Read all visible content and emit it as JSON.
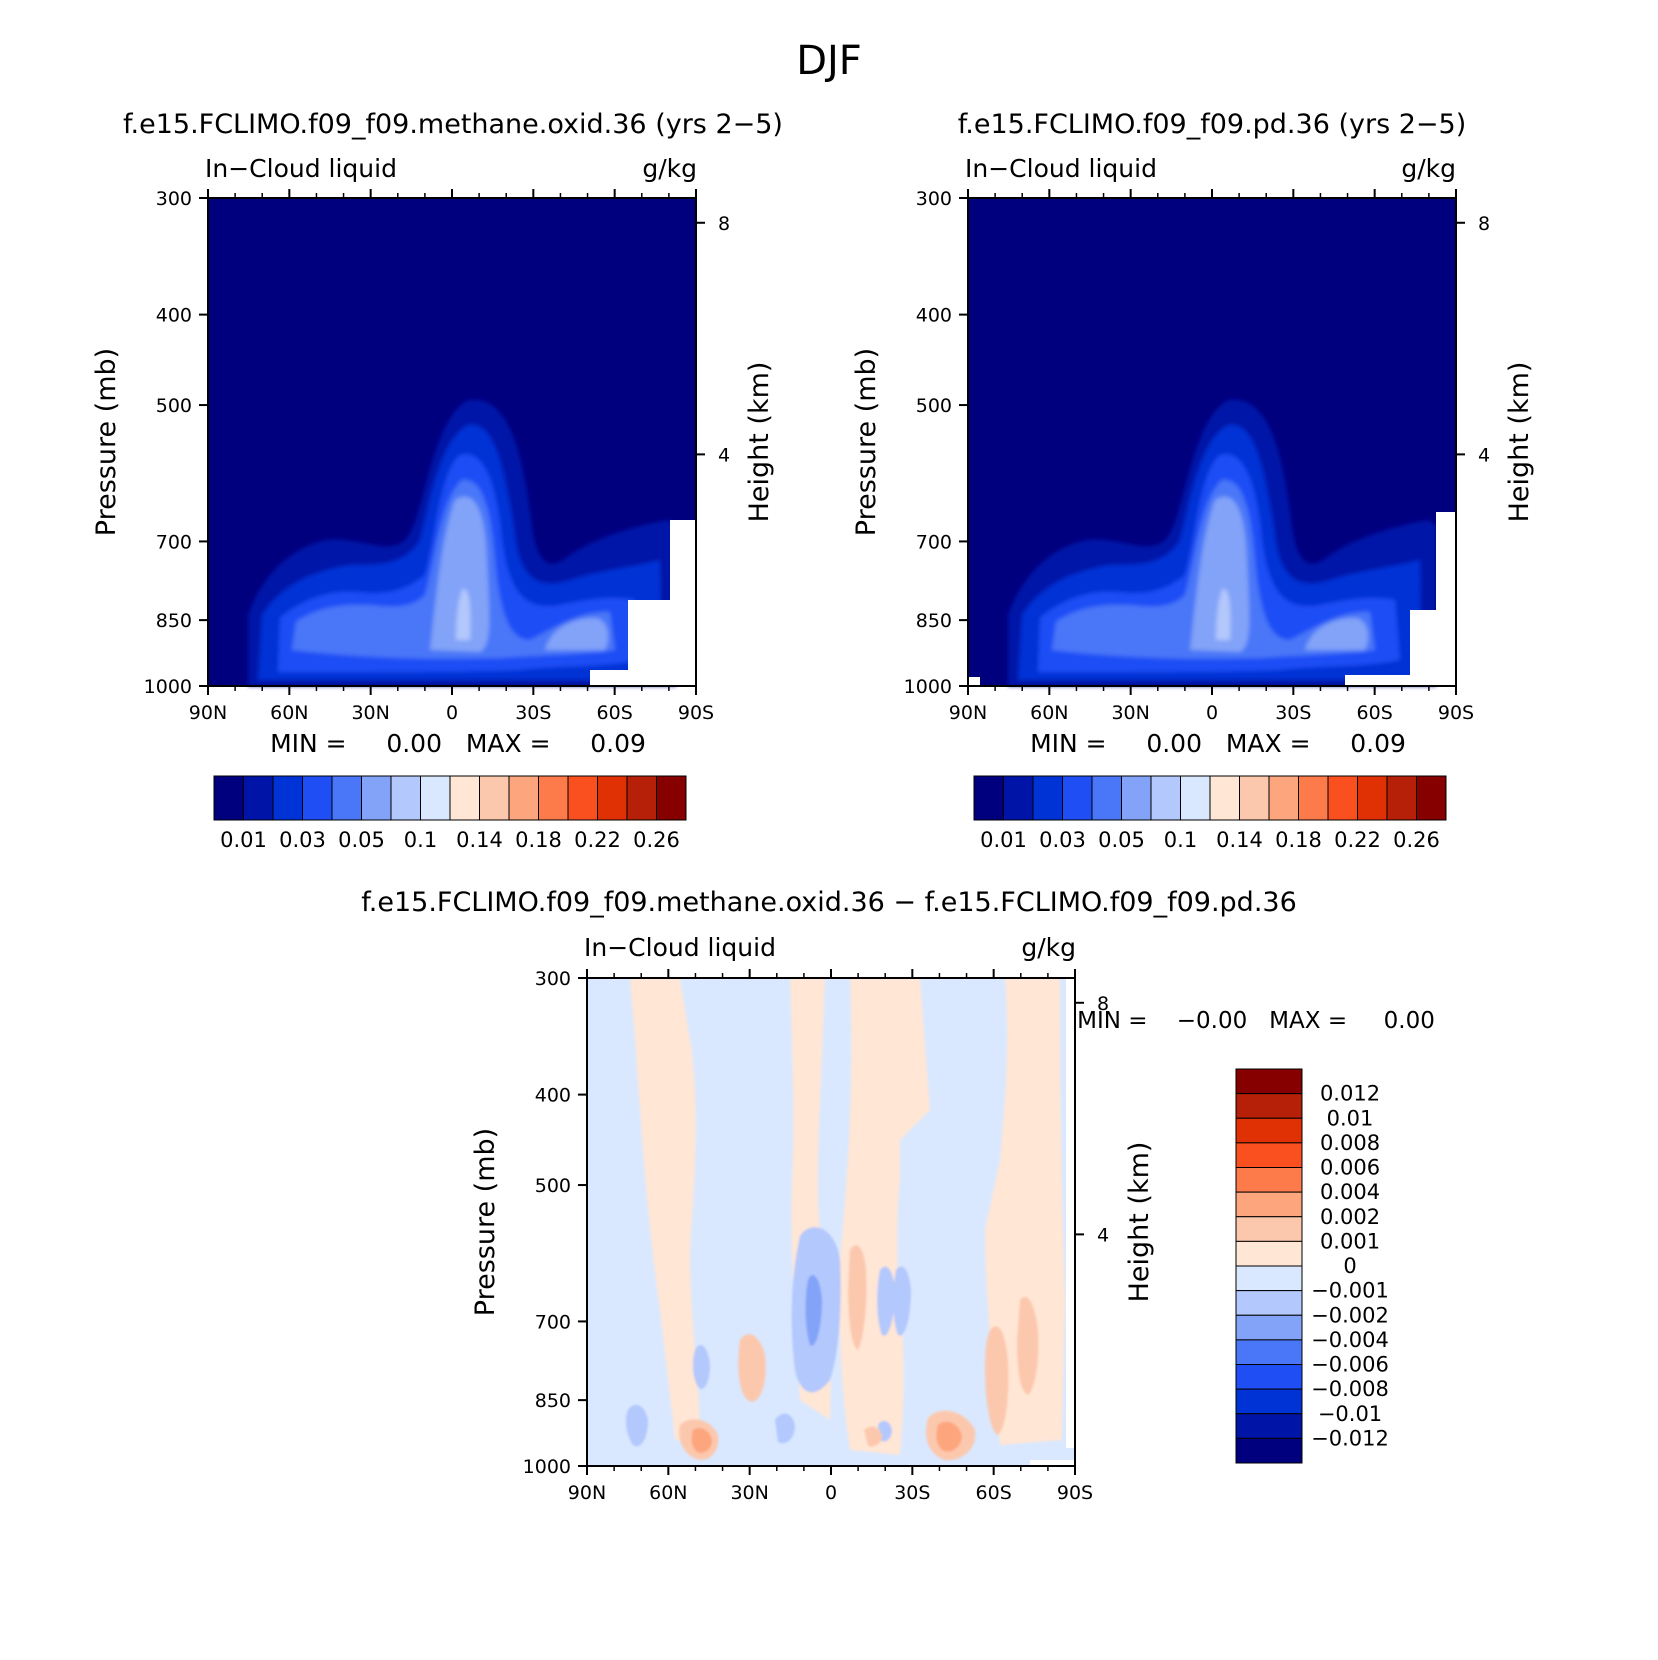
{
  "page_title": "DJF",
  "colors": {
    "sequential": [
      "#00007f",
      "#0014a8",
      "#0033d6",
      "#1f4ef5",
      "#4a77f8",
      "#82a3f8",
      "#b3c8fc",
      "#d9e8ff",
      "#ffe6d5",
      "#fcc8ad",
      "#fda67e",
      "#fd7b4b",
      "#fa4f1f",
      "#e03105",
      "#b61f08",
      "#860000"
    ],
    "diverging": [
      "#00007f",
      "#0014a8",
      "#0033d6",
      "#1f4ef5",
      "#4a77f8",
      "#82a3f8",
      "#b3c8fc",
      "#d9e8ff",
      "#ffe6d5",
      "#fcc8ad",
      "#fda67e",
      "#fd7b4b",
      "#fa4f1f",
      "#e03105",
      "#b61f08",
      "#860000"
    ]
  },
  "chart_data": [
    {
      "type": "heatmap",
      "title": "f.e15.FCLIMO.f09_f09.methane.oxid.36 (yrs 2−5)",
      "left_label": "In−Cloud liquid",
      "right_label": "g/kg",
      "xlabel": "",
      "ylabel": "Pressure (mb)",
      "y2label": "Height (km)",
      "x_ticks": [
        "90N",
        "60N",
        "30N",
        "0",
        "30S",
        "60S",
        "90S"
      ],
      "y_ticks": [
        "300",
        "400",
        "500",
        "700",
        "850",
        "1000"
      ],
      "y_tick_values": [
        300,
        400,
        500,
        700,
        850,
        1000
      ],
      "y2_ticks": [
        "8",
        "4"
      ],
      "y2_tick_values_km": [
        8,
        4
      ],
      "ylim": [
        1000,
        300
      ],
      "xlim": [
        90,
        -90
      ],
      "stats": "MIN =     0.00   MAX =     0.09",
      "colorbar": {
        "labels": [
          "0.01",
          "0.03",
          "0.05",
          "0.1",
          "0.14",
          "0.18",
          "0.22",
          "0.26"
        ],
        "levels": [
          0.01,
          0.02,
          0.03,
          0.04,
          0.05,
          0.07,
          0.1,
          0.12,
          0.14,
          0.16,
          0.18,
          0.2,
          0.22,
          0.24,
          0.26
        ]
      },
      "features": [
        {
          "lat": 4,
          "top_p": 500,
          "max": 0.09
        },
        {
          "lat": -48,
          "top_p": 700,
          "max": 0.06
        },
        {
          "lat": 45,
          "top_p": 700,
          "max": 0.04
        }
      ]
    },
    {
      "type": "heatmap",
      "title": "f.e15.FCLIMO.f09_f09.pd.36 (yrs 2−5)",
      "left_label": "In−Cloud liquid",
      "right_label": "g/kg",
      "xlabel": "",
      "ylabel": "Pressure (mb)",
      "y2label": "Height (km)",
      "x_ticks": [
        "90N",
        "60N",
        "30N",
        "0",
        "30S",
        "60S",
        "90S"
      ],
      "y_ticks": [
        "300",
        "400",
        "500",
        "700",
        "850",
        "1000"
      ],
      "y_tick_values": [
        300,
        400,
        500,
        700,
        850,
        1000
      ],
      "y2_ticks": [
        "8",
        "4"
      ],
      "y2_tick_values_km": [
        8,
        4
      ],
      "ylim": [
        1000,
        300
      ],
      "xlim": [
        90,
        -90
      ],
      "stats": "MIN =     0.00   MAX =     0.09",
      "colorbar": {
        "labels": [
          "0.01",
          "0.03",
          "0.05",
          "0.1",
          "0.14",
          "0.18",
          "0.22",
          "0.26"
        ],
        "levels": [
          0.01,
          0.02,
          0.03,
          0.04,
          0.05,
          0.07,
          0.1,
          0.12,
          0.14,
          0.16,
          0.18,
          0.2,
          0.22,
          0.24,
          0.26
        ]
      },
      "features": [
        {
          "lat": 4,
          "top_p": 500,
          "max": 0.09
        },
        {
          "lat": -48,
          "top_p": 700,
          "max": 0.06
        },
        {
          "lat": 45,
          "top_p": 700,
          "max": 0.04
        }
      ]
    },
    {
      "type": "heatmap",
      "title": "f.e15.FCLIMO.f09_f09.methane.oxid.36 − f.e15.FCLIMO.f09_f09.pd.36",
      "left_label": "In−Cloud liquid",
      "right_label": "g/kg",
      "xlabel": "",
      "ylabel": "Pressure (mb)",
      "y2label": "Height (km)",
      "x_ticks": [
        "90N",
        "60N",
        "30N",
        "0",
        "30S",
        "60S",
        "90S"
      ],
      "y_ticks": [
        "300",
        "400",
        "500",
        "700",
        "850",
        "1000"
      ],
      "y_tick_values": [
        300,
        400,
        500,
        700,
        850,
        1000
      ],
      "y2_ticks": [
        "8",
        "4"
      ],
      "y2_tick_values_km": [
        8,
        4
      ],
      "ylim": [
        1000,
        300
      ],
      "xlim": [
        90,
        -90
      ],
      "stats": "MIN =    −0.00   MAX =     0.00",
      "colorbar": {
        "labels": [
          "0.012",
          "0.01",
          "0.008",
          "0.006",
          "0.004",
          "0.002",
          "0.001",
          "0",
          "−0.001",
          "−0.002",
          "−0.004",
          "−0.006",
          "−0.008",
          "−0.01",
          "−0.012"
        ],
        "levels": [
          0.012,
          0.01,
          0.008,
          0.006,
          0.004,
          0.002,
          0.001,
          0,
          -0.001,
          -0.002,
          -0.004,
          -0.006,
          -0.008,
          -0.01,
          -0.012
        ]
      }
    }
  ]
}
